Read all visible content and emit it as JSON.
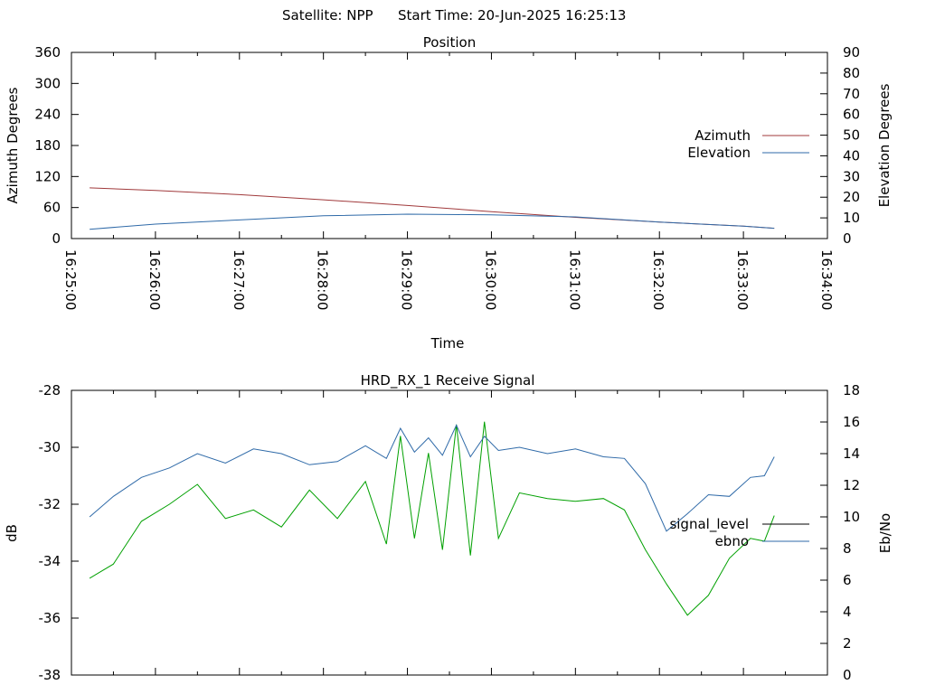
{
  "header": {
    "satellite_label": "Satellite: NPP",
    "start_time_label": "Start Time: 20-Jun-2025 16:25:13"
  },
  "chart_data": [
    {
      "type": "line",
      "title": "Position",
      "xlabel": "Time",
      "ylabel": "Azimuth Degrees",
      "ylabel_right": "Elevation Degrees",
      "xlim": [
        "16:25:00",
        "16:34:00"
      ],
      "ylim": [
        0,
        360
      ],
      "ylim_right": [
        0,
        90
      ],
      "x_ticks": [
        "16:25:00",
        "16:26:00",
        "16:27:00",
        "16:28:00",
        "16:29:00",
        "16:30:00",
        "16:31:00",
        "16:32:00",
        "16:33:00",
        "16:34:00"
      ],
      "y_ticks": [
        "0",
        "60",
        "120",
        "180",
        "240",
        "300",
        "360"
      ],
      "y_ticks_right": [
        "0",
        "10",
        "20",
        "30",
        "40",
        "50",
        "60",
        "70",
        "80",
        "90"
      ],
      "grid": false,
      "legend_position": "right",
      "series": [
        {
          "name": "Azimuth",
          "axis": "left",
          "color": "#a0393b",
          "x": [
            "16:25:13",
            "16:26:00",
            "16:27:00",
            "16:28:00",
            "16:29:00",
            "16:30:00",
            "16:31:00",
            "16:32:00",
            "16:33:00",
            "16:33:22"
          ],
          "values": [
            98,
            93,
            85,
            75,
            64,
            52,
            41,
            32,
            24,
            20
          ]
        },
        {
          "name": "Elevation",
          "axis": "right",
          "color": "#2f6aa8",
          "x": [
            "16:25:13",
            "16:26:00",
            "16:27:00",
            "16:28:00",
            "16:29:00",
            "16:30:00",
            "16:31:00",
            "16:32:00",
            "16:33:00",
            "16:33:22"
          ],
          "values": [
            4.5,
            7,
            9,
            11,
            11.8,
            11.5,
            10.5,
            8,
            6,
            5
          ]
        }
      ]
    },
    {
      "type": "line",
      "title": "HRD_RX_1 Receive Signal",
      "xlabel": "",
      "ylabel": "dB",
      "ylabel_right": "Eb/No",
      "xlim": [
        "16:25:00",
        "16:34:00"
      ],
      "ylim": [
        -38,
        -28
      ],
      "ylim_right": [
        0,
        18
      ],
      "y_ticks": [
        "-28",
        "-30",
        "-32",
        "-34",
        "-36",
        "-38"
      ],
      "y_ticks_right": [
        "0",
        "2",
        "4",
        "6",
        "8",
        "10",
        "12",
        "14",
        "16",
        "18"
      ],
      "grid": false,
      "legend_position": "right",
      "series": [
        {
          "name": "signal_level",
          "axis": "left",
          "color": "#00a000",
          "x": [
            "16:25:13",
            "16:25:30",
            "16:25:50",
            "16:26:10",
            "16:26:30",
            "16:26:50",
            "16:27:10",
            "16:27:30",
            "16:27:50",
            "16:28:10",
            "16:28:30",
            "16:28:45",
            "16:28:55",
            "16:29:05",
            "16:29:15",
            "16:29:25",
            "16:29:35",
            "16:29:45",
            "16:29:55",
            "16:30:05",
            "16:30:20",
            "16:30:40",
            "16:31:00",
            "16:31:20",
            "16:31:35",
            "16:31:50",
            "16:32:05",
            "16:32:20",
            "16:32:35",
            "16:32:50",
            "16:33:05",
            "16:33:15",
            "16:33:22"
          ],
          "values": [
            -34.6,
            -34.1,
            -32.6,
            -32.0,
            -31.3,
            -32.5,
            -32.2,
            -32.8,
            -31.5,
            -32.5,
            -31.2,
            -33.4,
            -29.6,
            -33.2,
            -30.2,
            -33.6,
            -29.2,
            -33.8,
            -29.1,
            -33.2,
            -31.6,
            -31.8,
            -31.9,
            -31.8,
            -32.2,
            -33.6,
            -34.8,
            -35.9,
            -35.2,
            -33.9,
            -33.2,
            -33.3,
            -32.4
          ]
        },
        {
          "name": "ebno",
          "axis": "right",
          "color": "#2f6aa8",
          "x": [
            "16:25:13",
            "16:25:30",
            "16:25:50",
            "16:26:10",
            "16:26:30",
            "16:26:50",
            "16:27:10",
            "16:27:30",
            "16:27:50",
            "16:28:10",
            "16:28:30",
            "16:28:45",
            "16:28:55",
            "16:29:05",
            "16:29:15",
            "16:29:25",
            "16:29:35",
            "16:29:45",
            "16:29:55",
            "16:30:05",
            "16:30:20",
            "16:30:40",
            "16:31:00",
            "16:31:20",
            "16:31:35",
            "16:31:50",
            "16:32:05",
            "16:32:20",
            "16:32:35",
            "16:32:50",
            "16:33:05",
            "16:33:15",
            "16:33:22"
          ],
          "values": [
            10.0,
            11.3,
            12.5,
            13.1,
            14.0,
            13.4,
            14.3,
            14.0,
            13.3,
            13.5,
            14.5,
            13.7,
            15.6,
            14.1,
            15.0,
            13.9,
            15.8,
            13.8,
            15.1,
            14.2,
            14.4,
            14.0,
            14.3,
            13.8,
            13.7,
            12.1,
            9.1,
            10.2,
            11.4,
            11.3,
            12.5,
            12.6,
            13.8
          ]
        }
      ]
    }
  ]
}
